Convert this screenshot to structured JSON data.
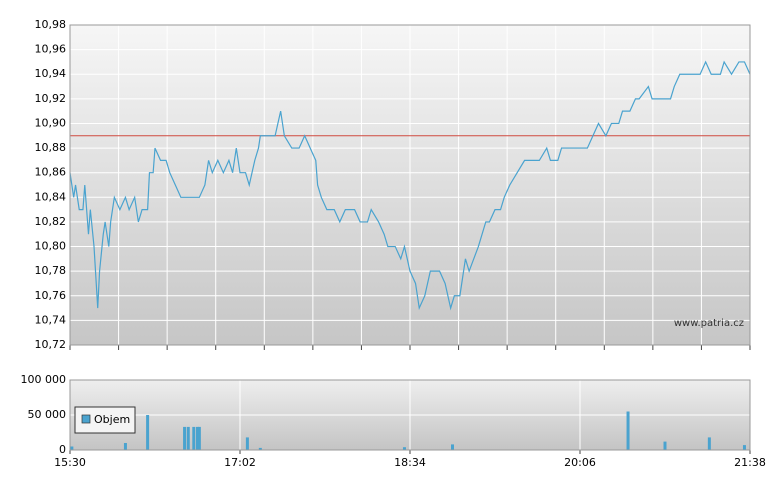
{
  "chart_data": [
    {
      "type": "line",
      "x": [
        930,
        932,
        933,
        935,
        937,
        938,
        940,
        941,
        943,
        945,
        946,
        948,
        949,
        951,
        952,
        954,
        957,
        960,
        962,
        965,
        967,
        969,
        972,
        973,
        975,
        976,
        979,
        982,
        984,
        987,
        990,
        992,
        1000,
        1003,
        1005,
        1007,
        1010,
        1013,
        1016,
        1018,
        1020,
        1022,
        1025,
        1027,
        1030,
        1032,
        1033,
        1038,
        1041,
        1044,
        1046,
        1050,
        1054,
        1057,
        1060,
        1063,
        1064,
        1066,
        1069,
        1073,
        1076,
        1079,
        1084,
        1087,
        1091,
        1093,
        1097,
        1100,
        1102,
        1106,
        1109,
        1111,
        1114,
        1117,
        1119,
        1122,
        1125,
        1130,
        1133,
        1136,
        1138,
        1141,
        1144,
        1146,
        1151,
        1155,
        1157,
        1160,
        1163,
        1165,
        1168,
        1172,
        1176,
        1179,
        1184,
        1188,
        1190,
        1194,
        1196,
        1201,
        1206,
        1210,
        1213,
        1216,
        1220,
        1223,
        1227,
        1229,
        1233,
        1236,
        1238,
        1243,
        1245,
        1249,
        1255,
        1257,
        1260,
        1266,
        1271,
        1274,
        1277,
        1282,
        1284,
        1288,
        1292,
        1295,
        1298
      ],
      "values": [
        10.86,
        10.84,
        10.85,
        10.83,
        10.83,
        10.85,
        10.81,
        10.83,
        10.8,
        10.75,
        10.78,
        10.81,
        10.82,
        10.8,
        10.82,
        10.84,
        10.83,
        10.84,
        10.83,
        10.84,
        10.82,
        10.83,
        10.83,
        10.86,
        10.86,
        10.88,
        10.87,
        10.87,
        10.86,
        10.85,
        10.84,
        10.84,
        10.84,
        10.85,
        10.87,
        10.86,
        10.87,
        10.86,
        10.87,
        10.86,
        10.88,
        10.86,
        10.86,
        10.85,
        10.87,
        10.88,
        10.89,
        10.89,
        10.89,
        10.91,
        10.89,
        10.88,
        10.88,
        10.89,
        10.88,
        10.87,
        10.85,
        10.84,
        10.83,
        10.83,
        10.82,
        10.83,
        10.83,
        10.82,
        10.82,
        10.83,
        10.82,
        10.81,
        10.8,
        10.8,
        10.79,
        10.8,
        10.78,
        10.77,
        10.75,
        10.76,
        10.78,
        10.78,
        10.77,
        10.75,
        10.76,
        10.76,
        10.79,
        10.78,
        10.8,
        10.82,
        10.82,
        10.83,
        10.83,
        10.84,
        10.85,
        10.86,
        10.87,
        10.87,
        10.87,
        10.88,
        10.87,
        10.87,
        10.88,
        10.88,
        10.88,
        10.88,
        10.89,
        10.9,
        10.89,
        10.9,
        10.9,
        10.91,
        10.91,
        10.92,
        10.92,
        10.93,
        10.92,
        10.92,
        10.92,
        10.93,
        10.94,
        10.94,
        10.94,
        10.95,
        10.94,
        10.94,
        10.95,
        10.94,
        10.95,
        10.95,
        10.94
      ],
      "color": "#4aa3cf",
      "xlim": [
        930,
        1298
      ],
      "ylim": [
        10.72,
        10.98
      ],
      "yticks": [
        {
          "value": 10.72,
          "label": "10,72"
        },
        {
          "value": 10.74,
          "label": "10,74"
        },
        {
          "value": 10.76,
          "label": "10,76"
        },
        {
          "value": 10.78,
          "label": "10,78"
        },
        {
          "value": 10.8,
          "label": "10,80"
        },
        {
          "value": 10.82,
          "label": "10,82"
        },
        {
          "value": 10.84,
          "label": "10,84"
        },
        {
          "value": 10.86,
          "label": "10,86"
        },
        {
          "value": 10.88,
          "label": "10,88"
        },
        {
          "value": 10.9,
          "label": "10,90"
        },
        {
          "value": 10.92,
          "label": "10,92"
        },
        {
          "value": 10.94,
          "label": "10,94"
        },
        {
          "value": 10.96,
          "label": "10,96"
        },
        {
          "value": 10.98,
          "label": "10,98"
        }
      ],
      "reference_line": {
        "value": 10.89,
        "color": "#d04a40"
      },
      "watermark": "www.patria.cz",
      "grid": true
    },
    {
      "type": "bar",
      "x": [
        931,
        960,
        972,
        992,
        994,
        997,
        999,
        1000,
        1026,
        1033,
        1111,
        1137,
        1232,
        1252,
        1276,
        1295
      ],
      "series": [
        {
          "name": "Objem",
          "color": "#4aa3cf",
          "values": [
            5000,
            10000,
            50000,
            33000,
            33000,
            33000,
            33000,
            33000,
            18000,
            3000,
            4000,
            8000,
            55000,
            12000,
            18000,
            7000
          ]
        }
      ],
      "xlim": [
        930,
        1298
      ],
      "xticks": [
        {
          "value": 930,
          "label": "15:30"
        },
        {
          "value": 1022,
          "label": "17:02"
        },
        {
          "value": 1114,
          "label": "18:34"
        },
        {
          "value": 1206,
          "label": "20:06"
        },
        {
          "value": 1298,
          "label": "21:38"
        }
      ],
      "ylim": [
        0,
        100000
      ],
      "yticks": [
        0,
        {
          "value": 50000,
          "label": "50 000"
        },
        {
          "value": 100000,
          "label": "100 000"
        }
      ],
      "grid": true
    }
  ]
}
